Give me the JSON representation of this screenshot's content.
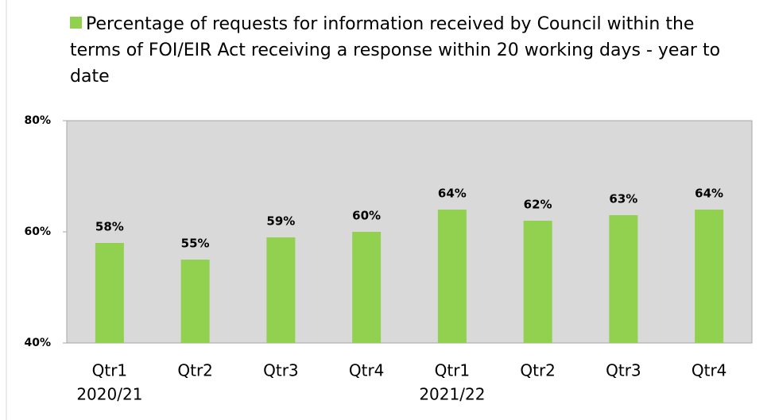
{
  "chart_data": {
    "type": "bar",
    "series": [
      {
        "name": "Percentage of requests for information received by Council within the terms of FOI/EIR Act receiving a response within 20 working days - year to date",
        "color": "#92d050",
        "values": [
          58,
          55,
          59,
          60,
          64,
          62,
          63,
          64
        ],
        "value_labels": [
          "58%",
          "55%",
          "59%",
          "60%",
          "64%",
          "62%",
          "63%",
          "64%"
        ]
      }
    ],
    "categories": [
      "Qtr1",
      "Qtr2",
      "Qtr3",
      "Qtr4",
      "Qtr1",
      "Qtr2",
      "Qtr3",
      "Qtr4"
    ],
    "category_groups": [
      "2020/21",
      null,
      null,
      null,
      "2021/22",
      null,
      null,
      null
    ],
    "ylim": [
      40,
      80
    ],
    "yticks": [
      {
        "value": 40,
        "label": "40%"
      },
      {
        "value": 60,
        "label": "60%"
      },
      {
        "value": 80,
        "label": "80%"
      }
    ],
    "legend": "top",
    "plot_background": "#d9d9d9"
  }
}
